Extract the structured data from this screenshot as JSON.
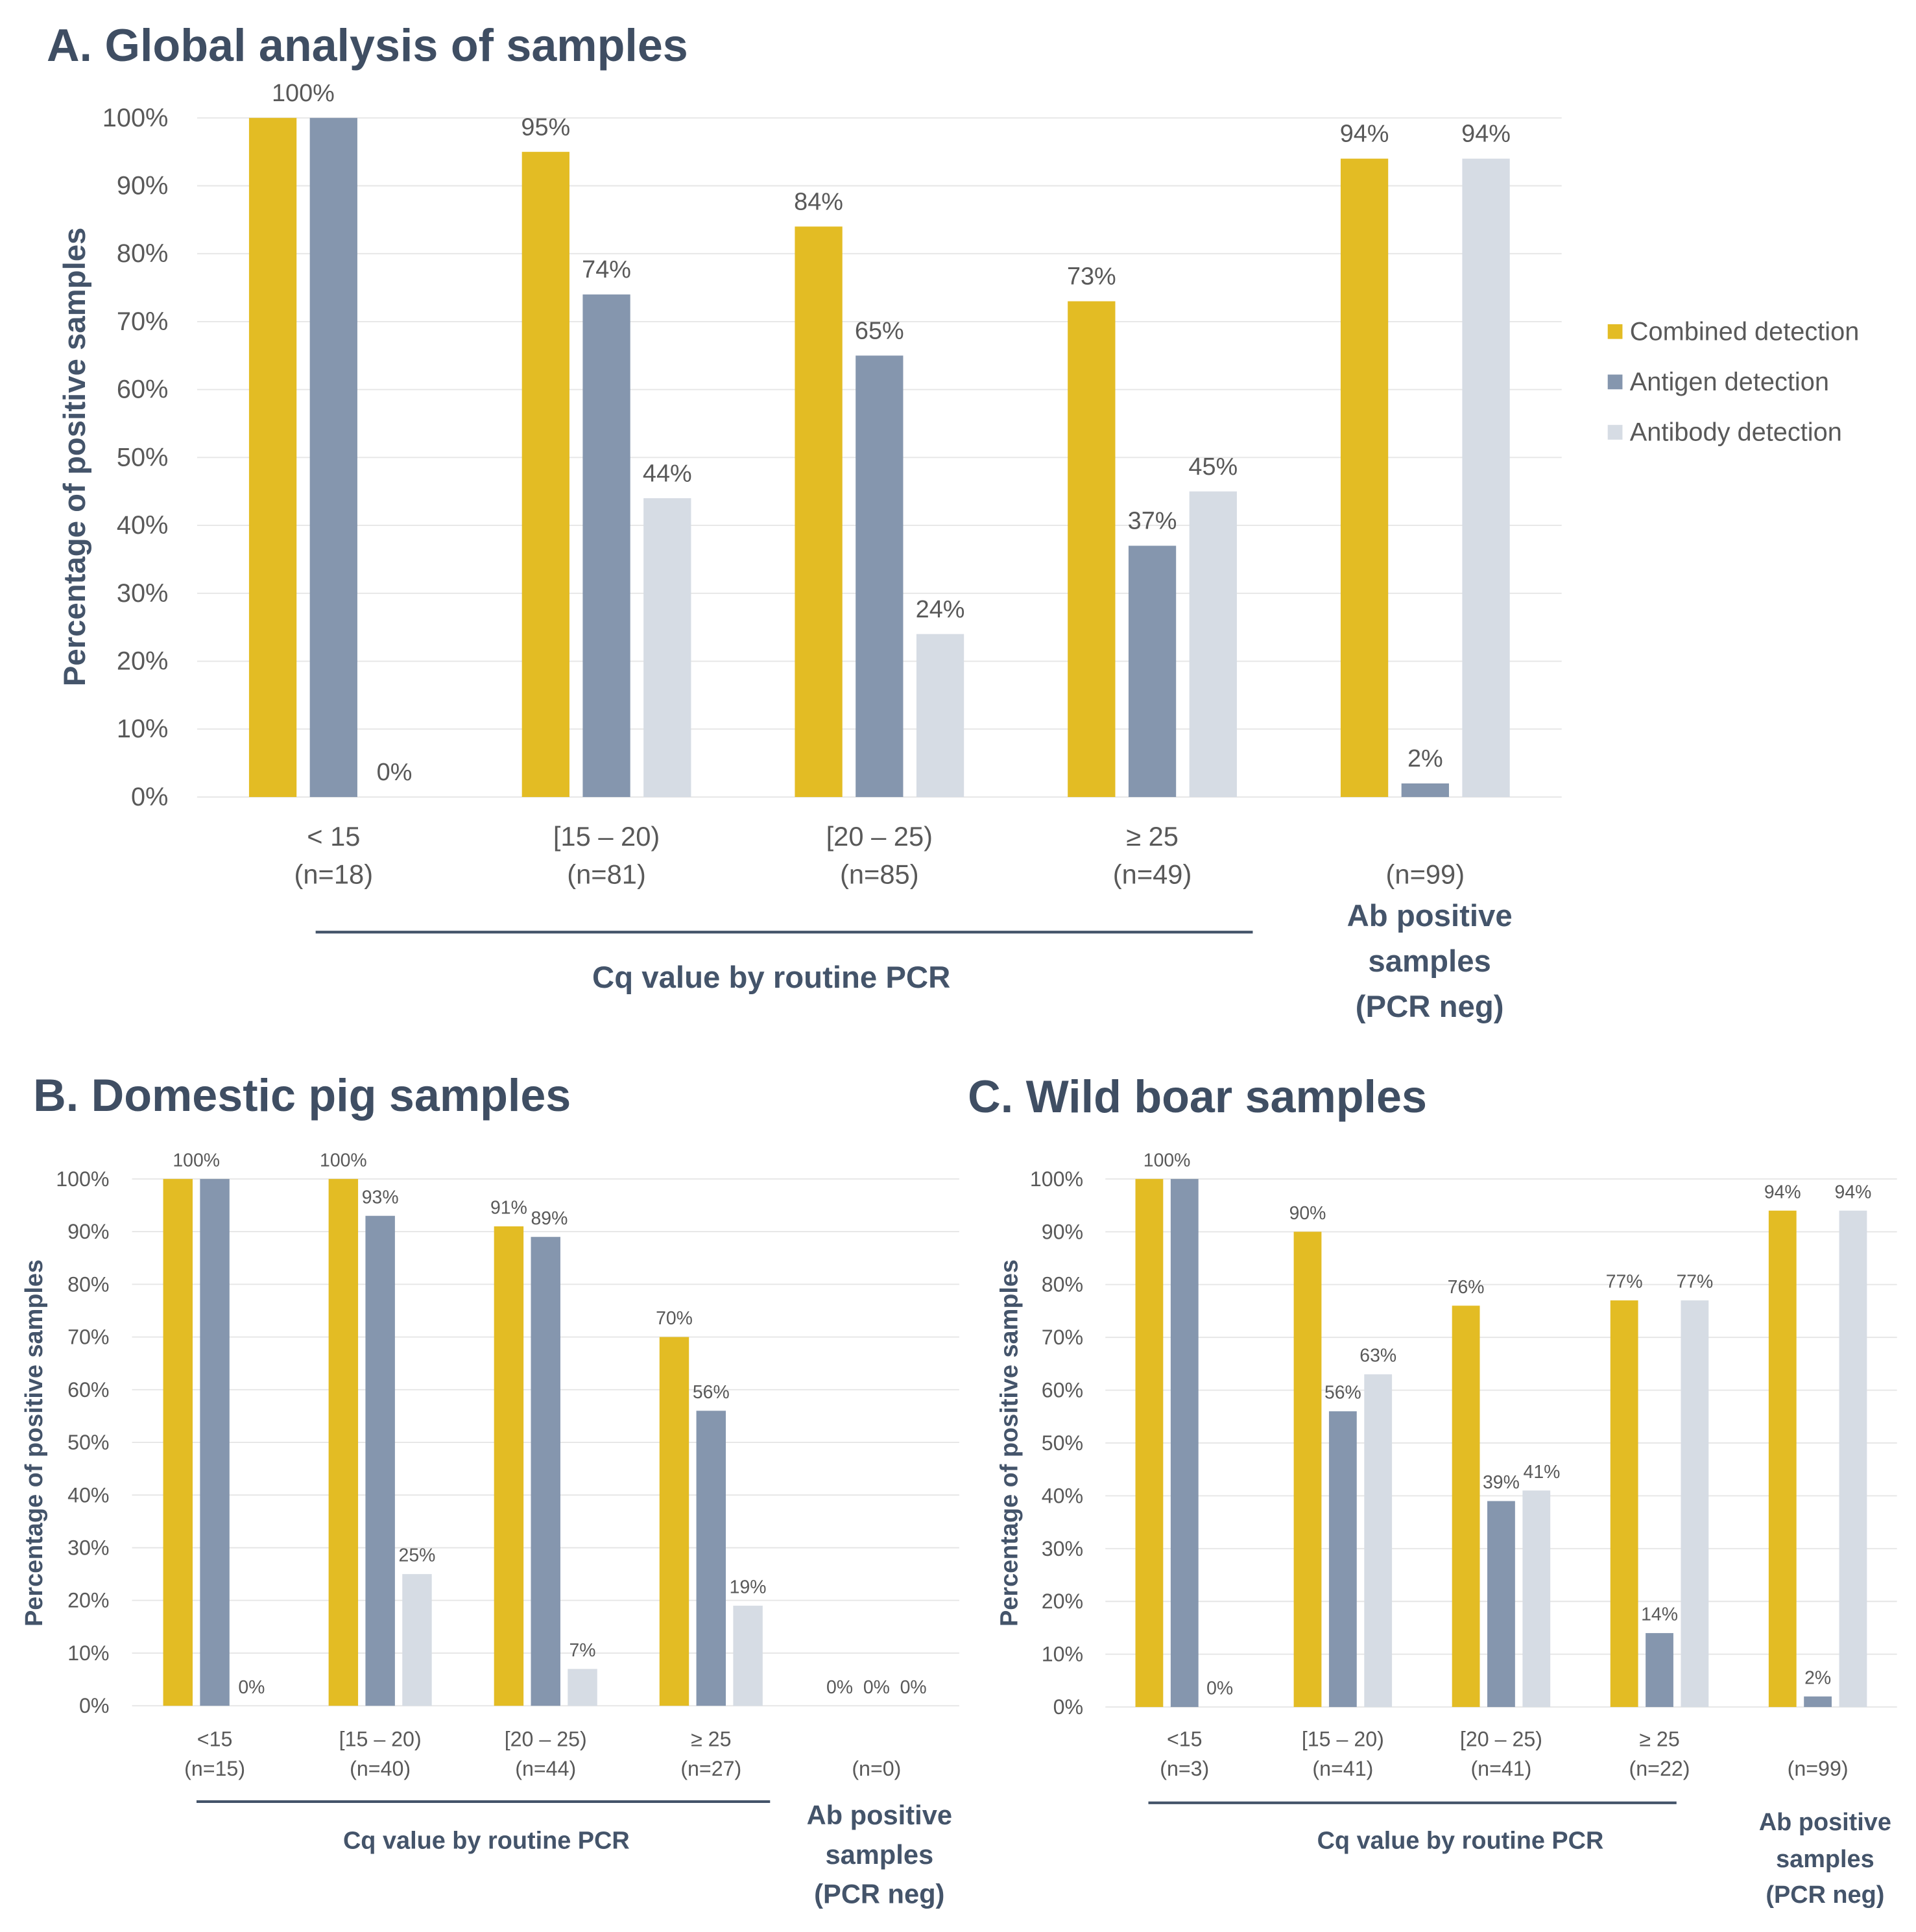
{
  "chart_data": [
    {
      "type": "bar",
      "title": "A. Global analysis of samples",
      "ylabel": "Percentage of positive samples",
      "xlabel": "Cq value by routine PCR",
      "ylim": [
        0,
        100
      ],
      "yticks": [
        0,
        10,
        20,
        30,
        40,
        50,
        60,
        70,
        80,
        90,
        100
      ],
      "ytick_labels": [
        "0%",
        "10%",
        "20%",
        "30%",
        "40%",
        "50%",
        "60%",
        "70%",
        "80%",
        "90%",
        "100%"
      ],
      "categories": [
        "< 15",
        "[15 – 20)",
        "[20 – 25)",
        "≥ 25",
        null
      ],
      "category_counts": [
        "(n=18)",
        "(n=81)",
        "(n=85)",
        "(n=49)",
        "(n=99)"
      ],
      "group_label": [
        "Ab positive",
        "samples",
        "(PCR neg)"
      ],
      "series": [
        {
          "name": "Combined detection",
          "color": "#E3BC24",
          "values": [
            100,
            95,
            84,
            73,
            94
          ],
          "labels": [
            "100%",
            "95%",
            "84%",
            "73%",
            "94%"
          ]
        },
        {
          "name": "Antigen detection",
          "color": "#8596AE",
          "values": [
            100,
            74,
            65,
            37,
            2
          ],
          "labels": [
            null,
            "74%",
            "65%",
            "37%",
            "2%"
          ]
        },
        {
          "name": "Antibody detection",
          "color": "#D6DCE4",
          "values": [
            0,
            44,
            24,
            45,
            94
          ],
          "labels": [
            "0%",
            "44%",
            "24%",
            "45%",
            "94%"
          ]
        }
      ]
    },
    {
      "type": "bar",
      "title": "B. Domestic pig samples",
      "ylabel": "Percentage of positive samples",
      "xlabel": "Cq value by routine PCR",
      "ylim": [
        0,
        100
      ],
      "yticks": [
        0,
        10,
        20,
        30,
        40,
        50,
        60,
        70,
        80,
        90,
        100
      ],
      "ytick_labels": [
        "0%",
        "10%",
        "20%",
        "30%",
        "40%",
        "50%",
        "60%",
        "70%",
        "80%",
        "90%",
        "100%"
      ],
      "categories": [
        "<15",
        "[15 – 20)",
        "[20 – 25)",
        "≥ 25",
        null
      ],
      "category_counts": [
        "(n=15)",
        "(n=40)",
        "(n=44)",
        "(n=27)",
        "(n=0)"
      ],
      "group_label": [
        "Ab positive",
        "samples",
        "(PCR neg)"
      ],
      "series": [
        {
          "color": "#E3BC24",
          "values": [
            100,
            100,
            91,
            70,
            0
          ],
          "labels": [
            "100%",
            "100%",
            "91%",
            "70%",
            "0%"
          ]
        },
        {
          "color": "#8596AE",
          "values": [
            100,
            93,
            89,
            56,
            0
          ],
          "labels": [
            null,
            "93%",
            "89%",
            "56%",
            "0%"
          ]
        },
        {
          "color": "#D6DCE4",
          "values": [
            0,
            25,
            7,
            19,
            0
          ],
          "labels": [
            "0%",
            "25%",
            "7%",
            "19%",
            "0%"
          ]
        }
      ]
    },
    {
      "type": "bar",
      "title": "C. Wild boar samples",
      "ylabel": "Percentage of positive samples",
      "xlabel": "Cq value by routine PCR",
      "ylim": [
        0,
        100
      ],
      "yticks": [
        0,
        10,
        20,
        30,
        40,
        50,
        60,
        70,
        80,
        90,
        100
      ],
      "ytick_labels": [
        "0%",
        "10%",
        "20%",
        "30%",
        "40%",
        "50%",
        "60%",
        "70%",
        "80%",
        "90%",
        "100%"
      ],
      "categories": [
        "<15",
        "[15 – 20)",
        "[20 – 25)",
        "≥ 25",
        null
      ],
      "category_counts": [
        "(n=3)",
        "(n=41)",
        "(n=41)",
        "(n=22)",
        "(n=99)"
      ],
      "group_label": [
        "Ab positive",
        "samples",
        "(PCR neg)"
      ],
      "series": [
        {
          "color": "#E3BC24",
          "values": [
            100,
            90,
            76,
            77,
            94
          ],
          "labels": [
            "100%",
            "90%",
            "76%",
            "77%",
            "94%"
          ]
        },
        {
          "color": "#8596AE",
          "values": [
            100,
            56,
            39,
            14,
            2
          ],
          "labels": [
            null,
            "56%",
            "39%",
            "14%",
            "2%"
          ]
        },
        {
          "color": "#D6DCE4",
          "values": [
            0,
            63,
            41,
            77,
            94
          ],
          "labels": [
            "0%",
            "63%",
            "41%",
            "77%",
            "94%"
          ]
        }
      ]
    }
  ]
}
